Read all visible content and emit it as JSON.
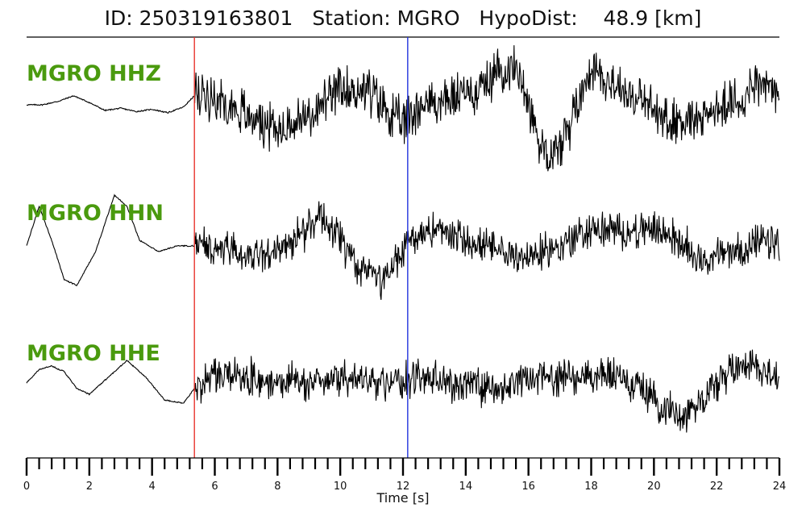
{
  "header": {
    "event_id_label": "ID:",
    "event_id": "250319163801",
    "station_label": "Station:",
    "station": "MGRO",
    "hypodist_label": "HypoDist:",
    "hypodist": "48.9",
    "hypodist_unit": "[km]"
  },
  "chart_data": {
    "type": "line",
    "xlabel": "Time [s]",
    "xlim": [
      0,
      24
    ],
    "x_major_ticks": [
      0,
      2,
      4,
      6,
      8,
      10,
      12,
      14,
      16,
      18,
      20,
      22,
      24
    ],
    "x_minor_step": 0.4,
    "label_color": "#4a9a0e",
    "trace_color": "#000000",
    "picks": [
      {
        "phase": "P",
        "time": 5.35,
        "color": "#e8352e"
      },
      {
        "phase": "S",
        "time": 12.15,
        "color": "#2233dd"
      }
    ],
    "series": [
      {
        "name": "MGRO HHZ",
        "amplitude_envelope": [
          [
            0,
            0.0
          ],
          [
            0.5,
            0.0
          ],
          [
            1.0,
            0.03
          ],
          [
            1.5,
            0.08
          ],
          [
            2.0,
            0.02
          ],
          [
            2.5,
            -0.05
          ],
          [
            3.0,
            -0.03
          ],
          [
            3.5,
            -0.06
          ],
          [
            4.0,
            -0.04
          ],
          [
            4.5,
            -0.07
          ],
          [
            5.0,
            -0.02
          ],
          [
            5.35,
            0.08
          ],
          [
            6.0,
            0.08
          ],
          [
            7.0,
            -0.08
          ],
          [
            8.0,
            -0.22
          ],
          [
            9.0,
            -0.1
          ],
          [
            10.0,
            0.12
          ],
          [
            10.8,
            0.15
          ],
          [
            11.5,
            -0.05
          ],
          [
            12.0,
            -0.18
          ],
          [
            12.5,
            0.0
          ],
          [
            13.5,
            0.05
          ],
          [
            14.5,
            0.15
          ],
          [
            15.2,
            0.35
          ],
          [
            15.8,
            0.25
          ],
          [
            16.3,
            -0.3
          ],
          [
            16.8,
            -0.45
          ],
          [
            17.3,
            -0.2
          ],
          [
            18.0,
            0.35
          ],
          [
            18.6,
            0.2
          ],
          [
            19.5,
            0.05
          ],
          [
            20.5,
            -0.15
          ],
          [
            21.5,
            -0.1
          ],
          [
            22.5,
            0.0
          ],
          [
            23.3,
            0.2
          ],
          [
            24.0,
            0.1
          ]
        ],
        "noise_before": 0.0,
        "noise_after": 0.28
      },
      {
        "name": "MGRO HHN",
        "amplitude_envelope": [
          [
            0,
            0.0
          ],
          [
            0.4,
            0.35
          ],
          [
            0.8,
            0.05
          ],
          [
            1.2,
            -0.3
          ],
          [
            1.6,
            -0.35
          ],
          [
            2.2,
            -0.05
          ],
          [
            2.8,
            0.45
          ],
          [
            3.2,
            0.35
          ],
          [
            3.6,
            0.05
          ],
          [
            4.2,
            -0.05
          ],
          [
            4.8,
            0.0
          ],
          [
            5.35,
            0.0
          ],
          [
            6.0,
            -0.02
          ],
          [
            7.0,
            -0.08
          ],
          [
            8.0,
            -0.04
          ],
          [
            8.8,
            0.1
          ],
          [
            9.4,
            0.3
          ],
          [
            10.0,
            0.05
          ],
          [
            10.6,
            -0.2
          ],
          [
            11.3,
            -0.32
          ],
          [
            11.8,
            -0.15
          ],
          [
            12.15,
            0.05
          ],
          [
            13.0,
            0.15
          ],
          [
            14.0,
            0.05
          ],
          [
            15.0,
            -0.05
          ],
          [
            16.0,
            -0.1
          ],
          [
            17.0,
            0.0
          ],
          [
            18.0,
            0.15
          ],
          [
            19.0,
            0.12
          ],
          [
            20.0,
            0.15
          ],
          [
            20.8,
            0.05
          ],
          [
            21.5,
            -0.12
          ],
          [
            22.5,
            -0.05
          ],
          [
            23.5,
            0.03
          ],
          [
            24.0,
            0.02
          ]
        ],
        "noise_before": 0.0,
        "noise_after": 0.22
      },
      {
        "name": "MGRO HHE",
        "amplitude_envelope": [
          [
            0,
            0.0
          ],
          [
            0.4,
            0.12
          ],
          [
            0.8,
            0.15
          ],
          [
            1.2,
            0.1
          ],
          [
            1.6,
            -0.05
          ],
          [
            2.0,
            -0.1
          ],
          [
            2.6,
            0.05
          ],
          [
            3.2,
            0.2
          ],
          [
            3.8,
            0.05
          ],
          [
            4.4,
            -0.15
          ],
          [
            5.0,
            -0.18
          ],
          [
            5.35,
            -0.05
          ],
          [
            6.0,
            0.1
          ],
          [
            7.0,
            0.05
          ],
          [
            8.0,
            0.02
          ],
          [
            9.0,
            0.0
          ],
          [
            10.0,
            0.05
          ],
          [
            11.0,
            0.0
          ],
          [
            12.0,
            0.0
          ],
          [
            12.5,
            0.05
          ],
          [
            13.5,
            0.0
          ],
          [
            14.5,
            -0.05
          ],
          [
            15.0,
            -0.1
          ],
          [
            15.5,
            0.0
          ],
          [
            16.5,
            0.05
          ],
          [
            17.5,
            0.05
          ],
          [
            18.5,
            0.08
          ],
          [
            19.5,
            -0.02
          ],
          [
            20.5,
            -0.25
          ],
          [
            21.0,
            -0.28
          ],
          [
            21.8,
            -0.05
          ],
          [
            22.5,
            0.12
          ],
          [
            23.0,
            0.2
          ],
          [
            23.6,
            0.1
          ],
          [
            24.0,
            0.02
          ]
        ],
        "noise_before": 0.0,
        "noise_after": 0.22
      }
    ]
  }
}
